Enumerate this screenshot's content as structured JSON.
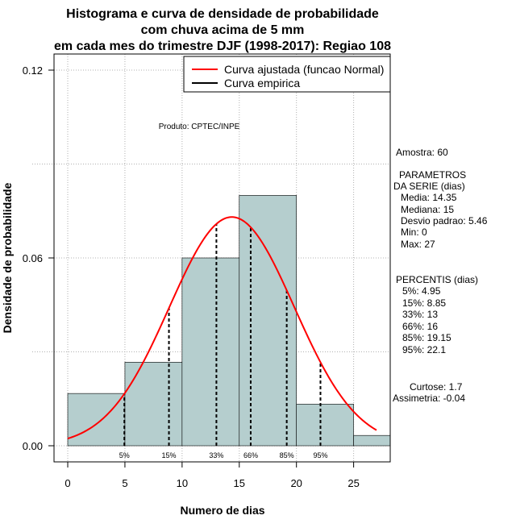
{
  "chart_data": {
    "type": "bar",
    "title": [
      "Histograma e curva de densidade de probabilidade",
      "com chuva acima de 5 mm",
      "em cada mes do trimestre DJF (1998-2017): Regiao 108"
    ],
    "xlabel": "Numero de dias",
    "ylabel": "Densidade de probabilidade",
    "xlim": [
      -1.2,
      28.2
    ],
    "ylim": [
      0,
      0.12
    ],
    "xticks": [
      0,
      5,
      10,
      15,
      20,
      25
    ],
    "yticks": [
      0.0,
      0.06,
      0.12
    ],
    "ytick_labels": [
      "0.00",
      "0.06",
      "0.12"
    ],
    "grid": true,
    "bins": [
      {
        "x0": 0,
        "x1": 5,
        "density": 0.0167
      },
      {
        "x0": 5,
        "x1": 10,
        "density": 0.0267
      },
      {
        "x0": 10,
        "x1": 15,
        "density": 0.06
      },
      {
        "x0": 15,
        "x1": 20,
        "density": 0.08
      },
      {
        "x0": 20,
        "x1": 25,
        "density": 0.0133
      },
      {
        "x0": 25,
        "x1": 30,
        "density": 0.0033
      }
    ],
    "normal_curve": {
      "mean": 14.35,
      "sd": 5.46,
      "x_from": 0,
      "x_to": 27,
      "color": "#ff0000"
    },
    "percentile_lines": [
      {
        "label": "5%",
        "x": 4.95
      },
      {
        "label": "15%",
        "x": 8.85
      },
      {
        "label": "33%",
        "x": 13
      },
      {
        "label": "66%",
        "x": 16
      },
      {
        "label": "85%",
        "x": 19.15
      },
      {
        "label": "95%",
        "x": 22.1
      }
    ],
    "legend": {
      "position": "top-right",
      "entries": [
        {
          "label": "Curva ajustada (funcao Normal)",
          "color": "#ff0000"
        },
        {
          "label": "Curva empirica",
          "color": "#000000"
        }
      ]
    },
    "annotation": "Produto: CPTEC/INPE",
    "bar_color": "#b5cece",
    "stats_text": [
      "Amostra: 60",
      "PARAMETROS",
      "DA SERIE (dias)",
      "Media: 14.35",
      "Mediana: 15",
      "Desvio padrao: 5.46",
      "Min: 0",
      "Max: 27",
      "PERCENTIS (dias)",
      "5%: 4.95",
      "15%: 8.85",
      "33%: 13",
      "66%: 16",
      "85%: 19.15",
      "95%: 22.1",
      "Curtose: 1.7",
      "Assimetria: -0.04"
    ]
  }
}
